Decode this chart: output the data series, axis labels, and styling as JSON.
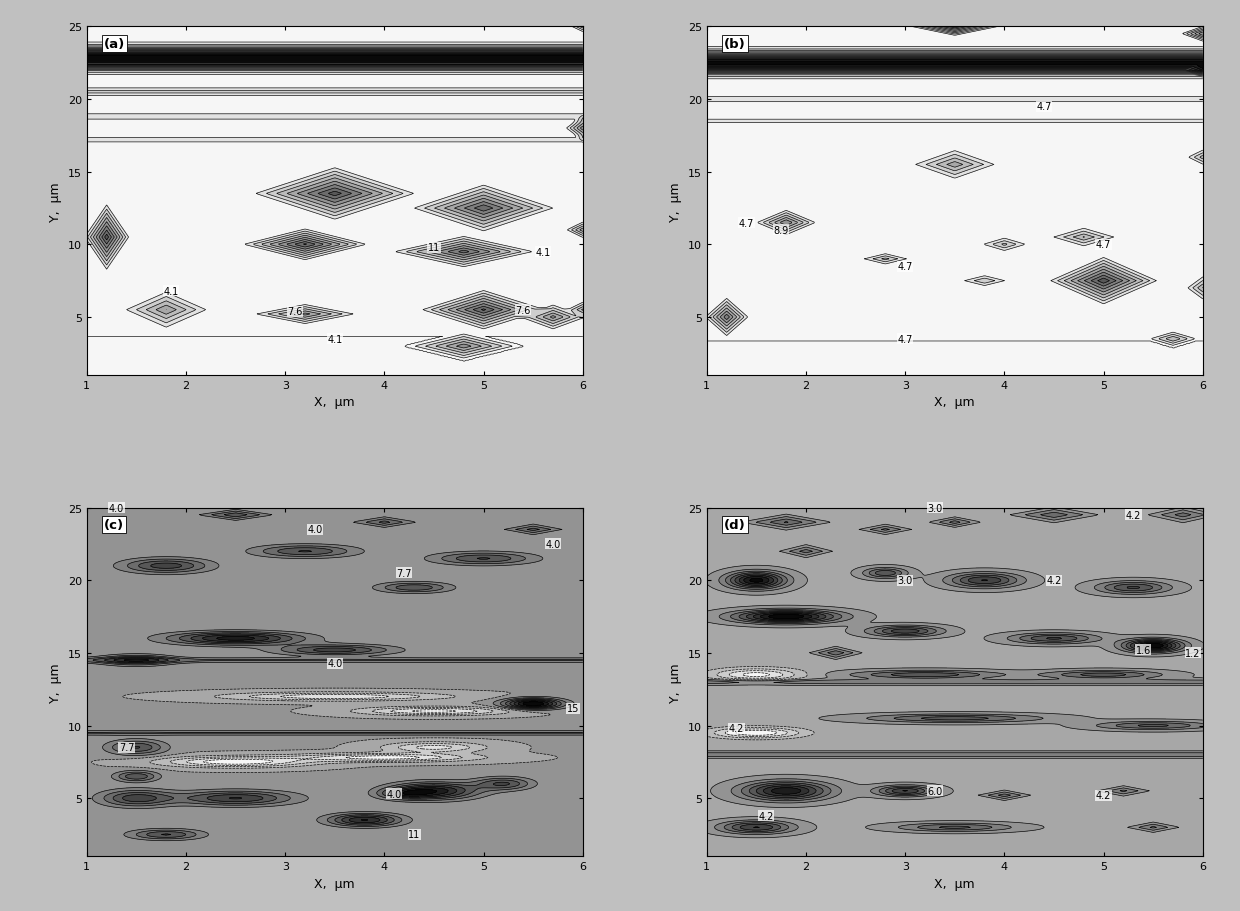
{
  "panels": [
    "(a)",
    "(b)",
    "(c)",
    "(d)"
  ],
  "xlabel": "X,  μm",
  "ylabel": "Y,  μm",
  "xlim": [
    1,
    6
  ],
  "ylim": [
    1,
    25
  ],
  "xticks": [
    1,
    2,
    3,
    4,
    5,
    6
  ],
  "yticks": [
    5,
    10,
    15,
    20,
    25
  ],
  "background_color": "#c8c8c8",
  "plot_bg": "#ffffff",
  "contour_linewidth": 0.5,
  "label_fontsize": 7,
  "axis_label_fontsize": 9,
  "tick_fontsize": 8,
  "n_contour_levels": 14,
  "panel_a_labels": [
    [
      1.85,
      6.8,
      "4.1"
    ],
    [
      3.1,
      5.4,
      "7.6"
    ],
    [
      3.5,
      3.5,
      "4.1"
    ],
    [
      4.5,
      9.8,
      "11"
    ],
    [
      5.4,
      5.5,
      "7.6"
    ],
    [
      5.6,
      9.5,
      "4.1"
    ]
  ],
  "panel_b_labels": [
    [
      1.4,
      11.5,
      "4.7"
    ],
    [
      1.75,
      11.0,
      "8.9"
    ],
    [
      3.0,
      8.5,
      "4.7"
    ],
    [
      4.4,
      19.5,
      "4.7"
    ],
    [
      5.0,
      10.0,
      "4.7"
    ],
    [
      3.0,
      3.5,
      "4.7"
    ]
  ],
  "panel_c_labels": [
    [
      1.3,
      25.0,
      "4.0"
    ],
    [
      3.3,
      23.5,
      "4.0"
    ],
    [
      5.7,
      22.5,
      "4.0"
    ],
    [
      4.2,
      20.5,
      "7.7"
    ],
    [
      3.5,
      14.3,
      "4.0"
    ],
    [
      5.9,
      11.2,
      "15"
    ],
    [
      1.4,
      8.5,
      "7.7"
    ],
    [
      4.1,
      5.3,
      "4.0"
    ],
    [
      4.3,
      2.5,
      "11"
    ]
  ],
  "panel_d_labels": [
    [
      3.3,
      25.0,
      "3.0"
    ],
    [
      5.3,
      24.5,
      "4.2"
    ],
    [
      3.0,
      20.0,
      "3.0"
    ],
    [
      4.5,
      20.0,
      "4.2"
    ],
    [
      5.4,
      15.2,
      "1.6"
    ],
    [
      5.9,
      15.0,
      "1.2"
    ],
    [
      1.3,
      9.8,
      "4.2"
    ],
    [
      3.3,
      5.5,
      "6.0"
    ],
    [
      5.0,
      5.2,
      "4.2"
    ],
    [
      1.6,
      3.8,
      "4.2"
    ]
  ]
}
